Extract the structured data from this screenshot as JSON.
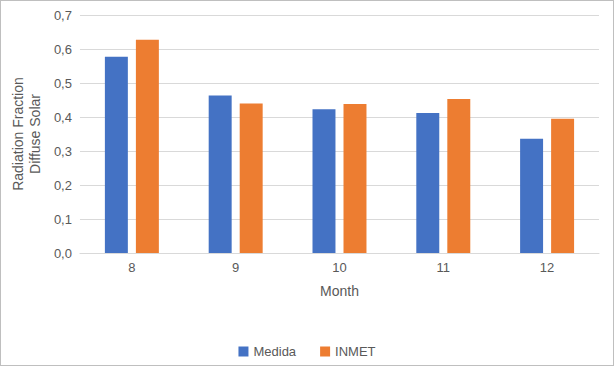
{
  "chart_data": {
    "type": "bar",
    "x_label": "Month",
    "y_label": "Radiation Fraction\nDiffuse Solar",
    "categories": [
      "8",
      "9",
      "10",
      "11",
      "12"
    ],
    "series": [
      {
        "name": "Medida",
        "color": "#4472c4",
        "values": [
          0.577,
          0.463,
          0.423,
          0.412,
          0.336
        ]
      },
      {
        "name": "INMET",
        "color": "#ed7d31",
        "values": [
          0.627,
          0.44,
          0.438,
          0.453,
          0.395
        ]
      }
    ],
    "ylim": [
      0,
      0.7
    ],
    "yticks": [
      {
        "value": 0,
        "label": "0,0"
      },
      {
        "value": 0.1,
        "label": "0,1"
      },
      {
        "value": 0.2,
        "label": "0,2"
      },
      {
        "value": 0.3,
        "label": "0,3"
      },
      {
        "value": 0.4,
        "label": "0,4"
      },
      {
        "value": 0.5,
        "label": "0,5"
      },
      {
        "value": 0.6,
        "label": "0,6"
      },
      {
        "value": 0.7,
        "label": "0,7"
      }
    ],
    "grid": true,
    "legend": "bottom"
  }
}
